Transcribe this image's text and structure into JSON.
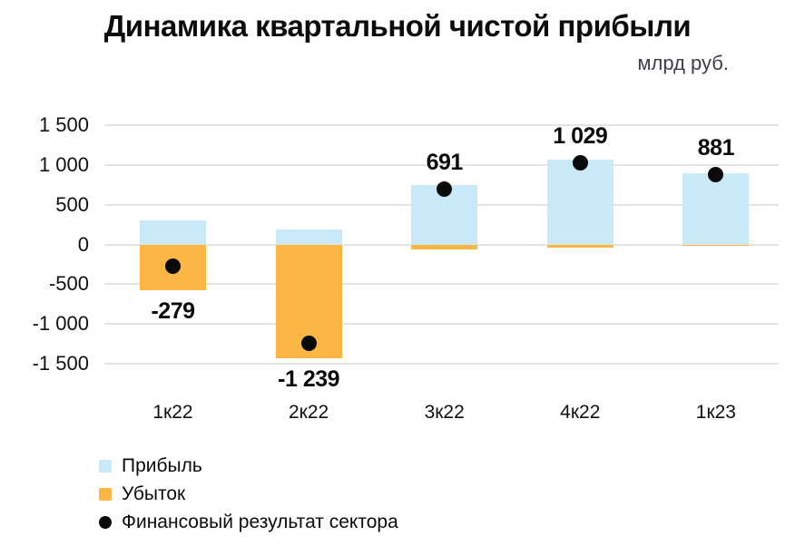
{
  "title": "Динамика квартальной чистой прибыли",
  "unit_label": "млрд руб.",
  "colors": {
    "profit": "#c9e8f8",
    "loss": "#fcb643",
    "dot": "#0a0a0a",
    "gridline": "#e4e4e4",
    "text": "#111111",
    "subtitle": "#3d3f46"
  },
  "legend": [
    {
      "label": "Прибыль",
      "marker": "square",
      "color": "#c9e8f8"
    },
    {
      "label": "Убыток",
      "marker": "square",
      "color": "#fcb643"
    },
    {
      "label": "Финансовый результат сектора",
      "marker": "circle",
      "color": "#0a0a0a"
    }
  ],
  "chart_data": {
    "type": "bar",
    "categories": [
      "1к22",
      "2к22",
      "3к22",
      "4к22",
      "1к23"
    ],
    "series": [
      {
        "name": "Прибыль",
        "type": "bar",
        "values": [
          300,
          190,
          750,
          1065,
          900
        ]
      },
      {
        "name": "Убыток",
        "type": "bar",
        "values": [
          -579,
          -1429,
          -59,
          -36,
          -19
        ]
      },
      {
        "name": "Финансовый результат сектора",
        "type": "point",
        "values": [
          -279,
          -1239,
          691,
          1029,
          881
        ]
      }
    ],
    "point_labels": [
      "-279",
      "-1 239",
      "691",
      "1 029",
      "881"
    ],
    "y_ticks": [
      {
        "value": 1500,
        "label": "1 500"
      },
      {
        "value": 1000,
        "label": "1 000"
      },
      {
        "value": 500,
        "label": "500"
      },
      {
        "value": 0,
        "label": "0"
      },
      {
        "value": -500,
        "label": "-500"
      },
      {
        "value": -1000,
        "label": "-1 000"
      },
      {
        "value": -1500,
        "label": "-1 500"
      }
    ],
    "ylim": [
      -1500,
      1500
    ],
    "grid": true,
    "legend_position": "bottom-left"
  }
}
